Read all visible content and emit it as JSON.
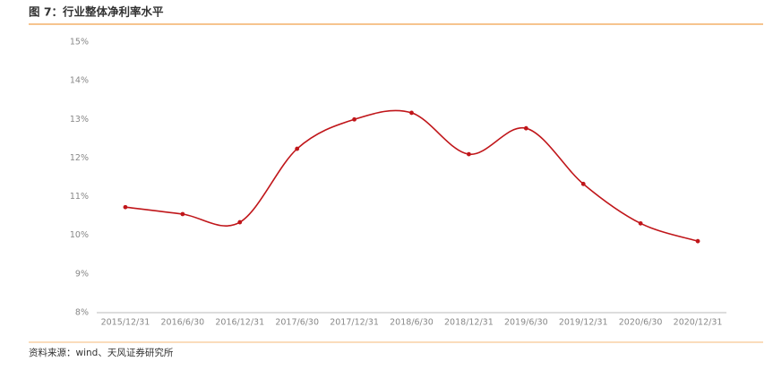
{
  "chart_data": {
    "type": "line",
    "title": "图 7：行业整体净利率水平",
    "source": "资料来源：wind、天风证券研究所",
    "categories": [
      "2015/12/31",
      "2016/6/30",
      "2016/12/31",
      "2017/6/30",
      "2017/12/31",
      "2018/6/30",
      "2018/12/31",
      "2019/6/30",
      "2019/12/31",
      "2020/6/30",
      "2020/12/31"
    ],
    "values": [
      10.73,
      10.55,
      10.34,
      12.24,
      13.0,
      13.17,
      12.1,
      12.77,
      11.33,
      10.31,
      9.85
    ],
    "color": "#c0161a",
    "ylim": [
      8,
      15
    ],
    "yticks": [
      {
        "value": 8,
        "label": "8%"
      },
      {
        "value": 9,
        "label": "9%"
      },
      {
        "value": 10,
        "label": "10%"
      },
      {
        "value": 11,
        "label": "11%"
      },
      {
        "value": 12,
        "label": "12%"
      },
      {
        "value": 13,
        "label": "13%"
      },
      {
        "value": 14,
        "label": "14%"
      },
      {
        "value": 15,
        "label": "15%"
      }
    ],
    "grid": false
  }
}
